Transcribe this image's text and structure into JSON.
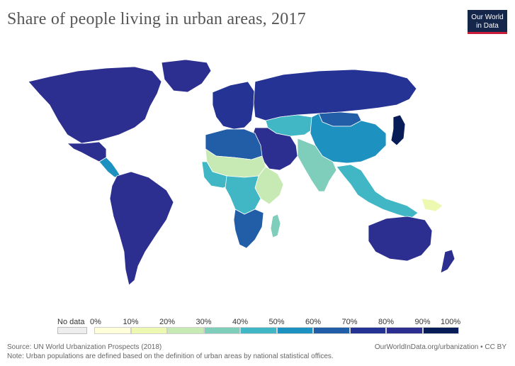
{
  "title": "Share of people living in urban areas, 2017",
  "logo": {
    "line1": "Our World",
    "line2": "in Data"
  },
  "legend": {
    "no_data_label": "No data",
    "ticks": [
      "0%",
      "10%",
      "20%",
      "30%",
      "40%",
      "50%",
      "60%",
      "70%",
      "80%",
      "90%",
      "100%"
    ],
    "colors": [
      "#ffffd9",
      "#edf8b1",
      "#c7e9b4",
      "#7fcdbb",
      "#41b6c4",
      "#1d91c0",
      "#225ea8",
      "#253494",
      "#2c2f8f",
      "#081d58"
    ],
    "no_data_color": "#eeeeee"
  },
  "map": {
    "ocean_color": "#ffffff",
    "border_color": "#ffffff",
    "regions": [
      {
        "name": "North America",
        "share_pct": 82
      },
      {
        "name": "Greenland",
        "share_pct": 87
      },
      {
        "name": "Mexico",
        "share_pct": 80
      },
      {
        "name": "Central America",
        "share_pct": 58
      },
      {
        "name": "South America",
        "share_pct": 85
      },
      {
        "name": "Europe",
        "share_pct": 75
      },
      {
        "name": "Russia",
        "share_pct": 74
      },
      {
        "name": "Central Asia",
        "share_pct": 45
      },
      {
        "name": "China",
        "share_pct": 58
      },
      {
        "name": "Mongolia",
        "share_pct": 68
      },
      {
        "name": "Japan",
        "share_pct": 92
      },
      {
        "name": "Middle East",
        "share_pct": 85
      },
      {
        "name": "South Asia",
        "share_pct": 34
      },
      {
        "name": "Southeast Asia",
        "share_pct": 45
      },
      {
        "name": "North Africa",
        "share_pct": 65
      },
      {
        "name": "Sahel",
        "share_pct": 22
      },
      {
        "name": "West Africa",
        "share_pct": 47
      },
      {
        "name": "East Africa",
        "share_pct": 22
      },
      {
        "name": "Central Africa",
        "share_pct": 45
      },
      {
        "name": "Southern Africa",
        "share_pct": 65
      },
      {
        "name": "Madagascar",
        "share_pct": 37
      },
      {
        "name": "Australia",
        "share_pct": 86
      },
      {
        "name": "New Zealand",
        "share_pct": 86
      },
      {
        "name": "Papua New Guinea",
        "share_pct": 13
      }
    ]
  },
  "footer": {
    "source": "Source: UN World Urbanization Prospects (2018)",
    "note": "Note: Urban populations are defined based on the definition of urban areas by national statistical offices.",
    "credit": "OurWorldInData.org/urbanization • CC BY"
  }
}
